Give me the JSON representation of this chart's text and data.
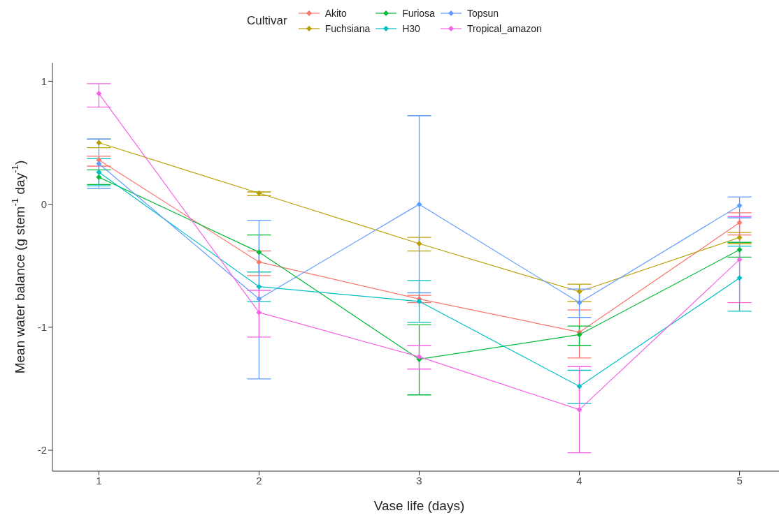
{
  "chart_data": {
    "type": "line",
    "xlabel": "Vase life (days)",
    "ylabel": "Mean water balance (g stem$^{-1}$ day$^{-1}$)",
    "legend_title": "Cultivar",
    "legend": "top",
    "grid": false,
    "marker": "diamond",
    "line_style": "solid",
    "x": [
      1,
      2,
      3,
      4,
      5
    ],
    "xlim": [
      0.71,
      5.29
    ],
    "xticks": [
      1,
      2,
      3,
      4,
      5
    ],
    "ylim": [
      -2.17,
      1.15
    ],
    "yticks": [
      -2,
      -1,
      0,
      1
    ],
    "series": [
      {
        "name": "Akito",
        "color": "#f8766d",
        "values": [
          0.36,
          -0.47,
          -0.77,
          -1.04,
          -0.15
        ],
        "errors": [
          [
            0.31,
            0.39
          ],
          [
            -0.58,
            -0.38
          ],
          [
            -0.8,
            -0.74
          ],
          [
            -1.25,
            -0.86
          ],
          [
            -0.25,
            -0.07
          ]
        ]
      },
      {
        "name": "Fuchsiana",
        "color": "#b79f00",
        "values": [
          0.5,
          0.09,
          -0.32,
          -0.71,
          -0.27
        ],
        "errors": [
          [
            0.46,
            0.53
          ],
          [
            0.07,
            0.1
          ],
          [
            -0.38,
            -0.27
          ],
          [
            -0.79,
            -0.65
          ],
          [
            -0.32,
            -0.23
          ]
        ]
      },
      {
        "name": "Furiosa",
        "color": "#00ba38",
        "values": [
          0.22,
          -0.39,
          -1.26,
          -1.06,
          -0.37
        ],
        "errors": [
          [
            0.16,
            0.28
          ],
          [
            -0.55,
            -0.25
          ],
          [
            -1.55,
            -0.98
          ],
          [
            -1.15,
            -0.99
          ],
          [
            -0.43,
            -0.31
          ]
        ]
      },
      {
        "name": "H30",
        "color": "#00bfc4",
        "values": [
          0.26,
          -0.67,
          -0.79,
          -1.48,
          -0.6
        ],
        "errors": [
          [
            0.15,
            0.37
          ],
          [
            -0.79,
            -0.55
          ],
          [
            -0.96,
            -0.62
          ],
          [
            -1.62,
            -1.35
          ],
          [
            -0.87,
            -0.34
          ]
        ]
      },
      {
        "name": "Topsun",
        "color": "#619cff",
        "values": [
          0.33,
          -0.77,
          0.0,
          -0.8,
          -0.01
        ],
        "errors": [
          [
            0.13,
            0.53
          ],
          [
            -1.42,
            -0.13
          ],
          [
            -0.72,
            0.72
          ],
          [
            -0.92,
            -0.69
          ],
          [
            -0.11,
            0.06
          ]
        ]
      },
      {
        "name": "Tropical_amazon",
        "color": "#f564e3",
        "values": [
          0.9,
          -0.88,
          -1.24,
          -1.67,
          -0.45
        ],
        "errors": [
          [
            0.79,
            0.98
          ],
          [
            -1.08,
            -0.7
          ],
          [
            -1.34,
            -1.15
          ],
          [
            -2.02,
            -1.32
          ],
          [
            -0.8,
            -0.1
          ]
        ]
      }
    ]
  }
}
